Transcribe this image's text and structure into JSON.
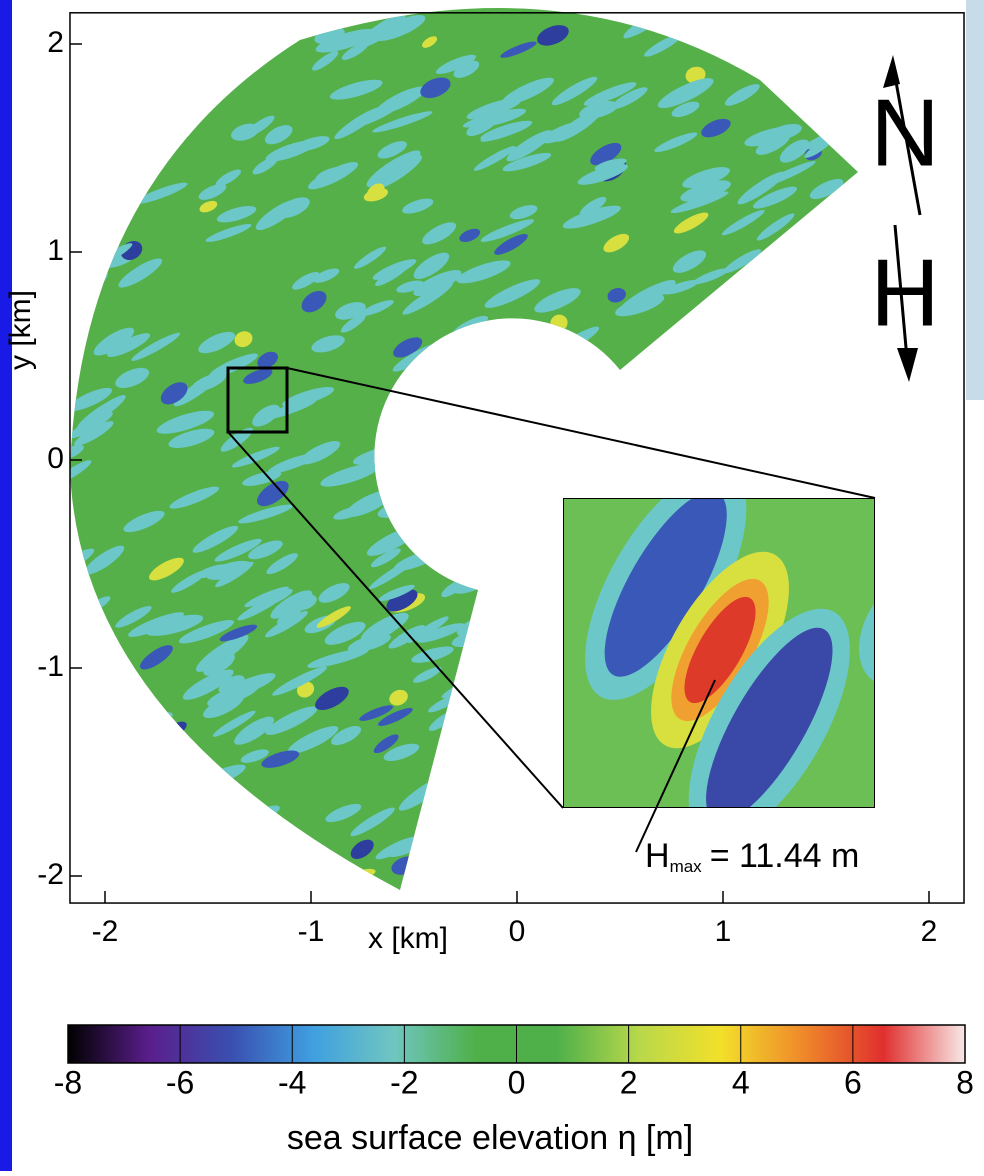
{
  "chart_data": {
    "type": "field-map",
    "x_label": "x [km]",
    "y_label": "y [km]",
    "xlim": [
      -2.17,
      2.17
    ],
    "ylim": [
      -2.13,
      2.15
    ],
    "xticks": [
      -2,
      -1,
      0,
      1,
      2
    ],
    "yticks": [
      -2,
      -1,
      0,
      1,
      2
    ],
    "annotation": {
      "symbol": "H",
      "subscript": "max",
      "text": "= 11.44 m"
    },
    "compass": [
      "N",
      "H"
    ],
    "colorbar": {
      "label": "sea surface elevation η [m]",
      "lim": [
        -8,
        8
      ],
      "ticks": [
        -8,
        -6,
        -4,
        -2,
        0,
        2,
        4,
        6,
        8
      ],
      "colors": [
        "#000000",
        "#5a1e8c",
        "#3a4fb0",
        "#3f9fe0",
        "#6fc6c0",
        "#4fb04a",
        "#4fb04a",
        "#b8d84a",
        "#f2e02a",
        "#ef8a2a",
        "#e0302e",
        "#f8e8e8"
      ]
    }
  }
}
